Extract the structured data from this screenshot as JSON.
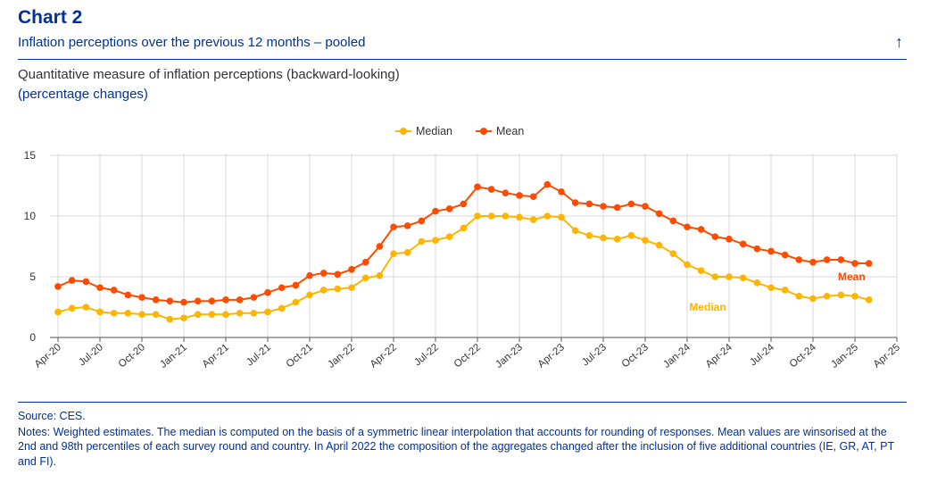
{
  "header": {
    "title": "Chart 2",
    "subtitle": "Inflation perceptions over the previous 12 months – pooled",
    "measure_title": "Quantitative measure of inflation perceptions (backward-looking)",
    "measure_units": "(percentage changes)"
  },
  "colors": {
    "median": "#FFB400",
    "mean": "#FF4B00",
    "accent": "#003299",
    "grid": "#D9D9D9"
  },
  "icons": {
    "up": "arrow-up-icon"
  },
  "chart_data": {
    "type": "line",
    "title": "Quantitative measure of inflation perceptions (backward-looking)",
    "ylabel": "percentage changes",
    "xlabel": "",
    "ylim": [
      0,
      15
    ],
    "yticks": [
      0,
      5,
      10,
      15
    ],
    "xticks": [
      "Apr-20",
      "Jul-20",
      "Oct-20",
      "Jan-21",
      "Apr-21",
      "Jul-21",
      "Oct-21",
      "Jan-22",
      "Apr-22",
      "Jul-22",
      "Oct-22",
      "Jan-23",
      "Apr-23",
      "Jul-23",
      "Oct-23",
      "Jan-24",
      "Apr-24",
      "Jul-24",
      "Oct-24",
      "Jan-25",
      "Apr-25"
    ],
    "grid": "vertical and horizontal",
    "legend_position": "top-center",
    "start_month": "Apr-20",
    "series": [
      {
        "name": "Median",
        "label": "Median",
        "color": "#FFB400",
        "values": [
          2.1,
          2.4,
          2.5,
          2.1,
          2.0,
          2.0,
          1.9,
          1.9,
          1.5,
          1.6,
          1.9,
          1.9,
          1.9,
          2.0,
          2.0,
          2.1,
          2.4,
          2.9,
          3.5,
          3.9,
          4.0,
          4.1,
          4.9,
          5.1,
          6.9,
          7.0,
          7.9,
          8.0,
          8.3,
          9.0,
          10.0,
          10.0,
          10.0,
          9.9,
          9.7,
          10.0,
          9.9,
          8.8,
          8.4,
          8.2,
          8.1,
          8.4,
          8.0,
          7.6,
          6.9,
          6.0,
          5.5,
          5.0,
          5.0,
          4.9,
          4.5,
          4.1,
          3.9,
          3.4,
          3.2,
          3.4,
          3.5,
          3.4,
          3.1
        ]
      },
      {
        "name": "Mean",
        "label": "Mean",
        "color": "#FF4B00",
        "values": [
          4.2,
          4.7,
          4.6,
          4.1,
          3.9,
          3.5,
          3.3,
          3.1,
          3.0,
          2.9,
          3.0,
          3.0,
          3.1,
          3.1,
          3.3,
          3.7,
          4.1,
          4.3,
          5.1,
          5.3,
          5.2,
          5.6,
          6.2,
          7.5,
          9.1,
          9.2,
          9.6,
          10.4,
          10.6,
          11.0,
          12.4,
          12.2,
          11.9,
          11.7,
          11.6,
          12.6,
          12.0,
          11.1,
          11.0,
          10.8,
          10.7,
          11.0,
          10.8,
          10.2,
          9.6,
          9.1,
          8.9,
          8.3,
          8.1,
          7.7,
          7.3,
          7.1,
          6.8,
          6.4,
          6.2,
          6.4,
          6.4,
          6.1,
          6.1
        ]
      }
    ]
  },
  "footer": {
    "source": "Source: CES.",
    "notes": "Notes: Weighted estimates. The median is computed on the basis of a symmetric linear interpolation that accounts for rounding of responses. Mean values are winsorised at the 2nd and 98th percentiles of each survey round and country. In April 2022 the composition of the aggregates changed after the inclusion of five additional countries (IE, GR, AT, PT and FI)."
  }
}
